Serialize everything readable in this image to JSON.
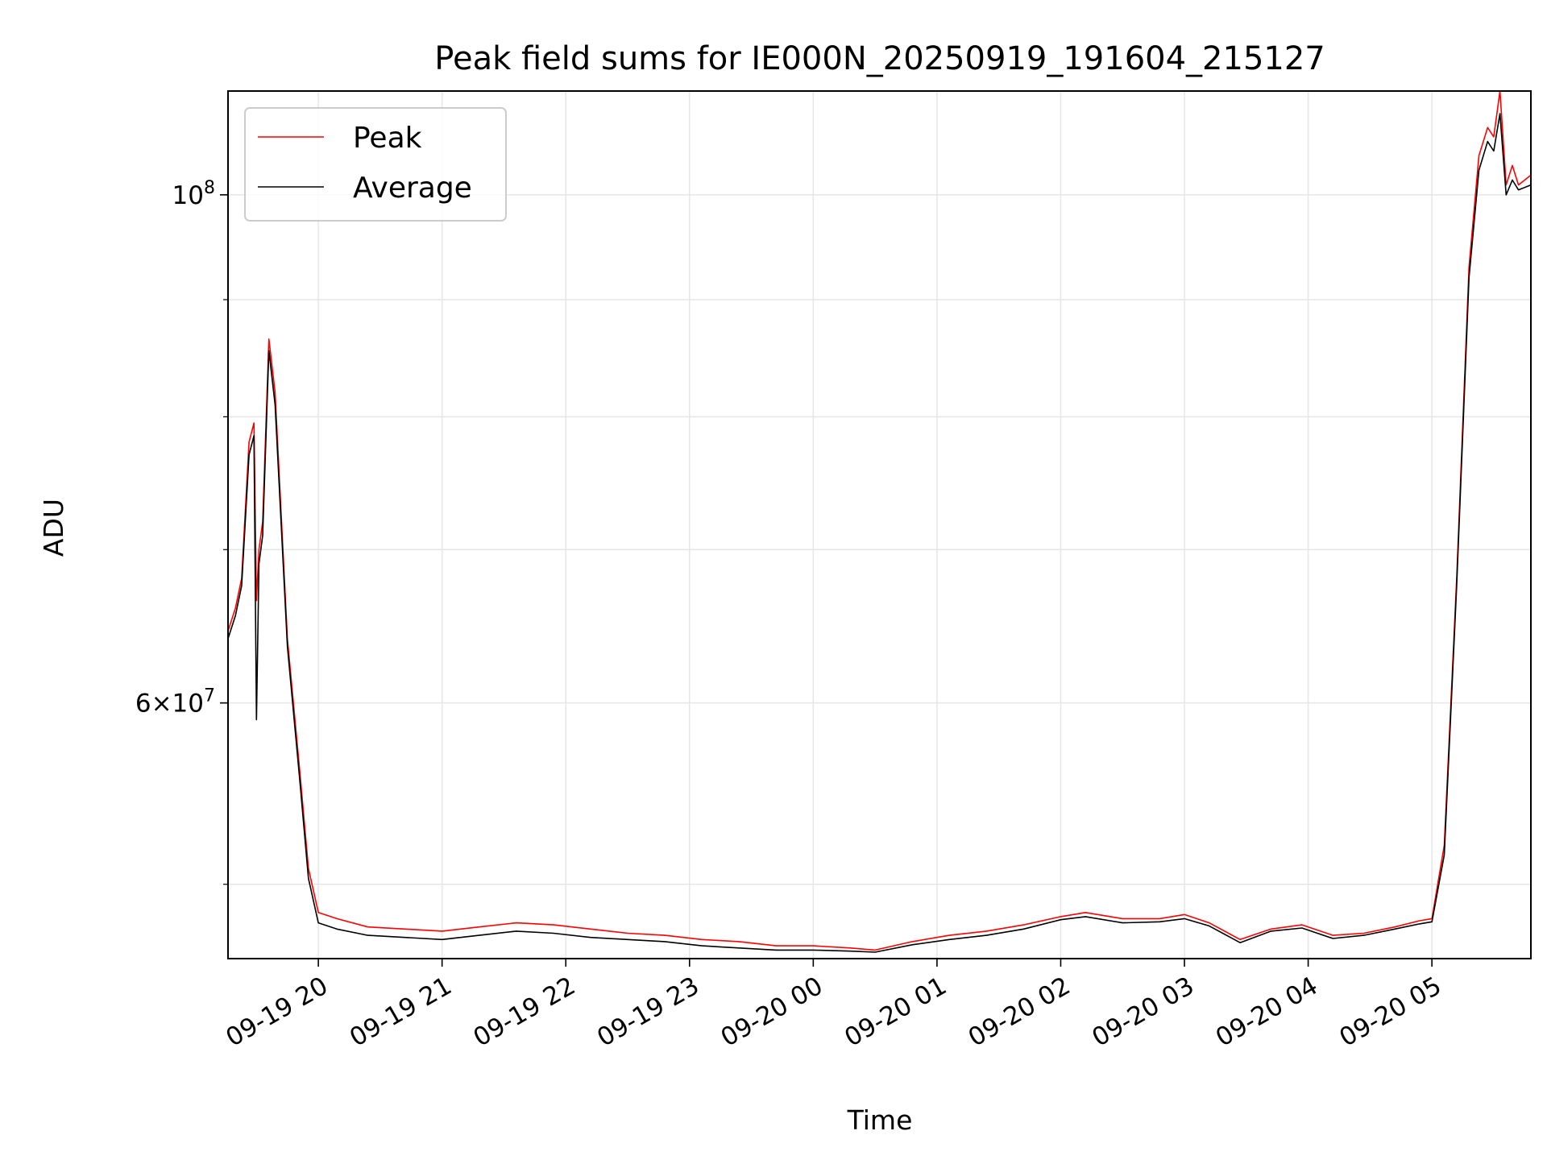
{
  "chart_data": {
    "type": "line",
    "title": "Peak field sums for IE000N_20250919_191604_215127",
    "xlabel": "Time",
    "ylabel": "ADU",
    "yscale": "log",
    "ylim": [
      46400000,
      111000000
    ],
    "xlim_hours": [
      19.27,
      29.8
    ],
    "grid": true,
    "legend_position": "top-left",
    "x_tick_hours": [
      20,
      21,
      22,
      23,
      24,
      25,
      26,
      27,
      28,
      29
    ],
    "x_tick_labels": [
      "09-19 20",
      "09-19 21",
      "09-19 22",
      "09-19 23",
      "09-20 00",
      "09-20 01",
      "09-20 02",
      "09-20 03",
      "09-20 04",
      "09-20 05"
    ],
    "y_major_ticks": [
      {
        "value": 100000000,
        "label_base": "10",
        "label_exp": "8"
      },
      {
        "value": 60000000,
        "label_base": "6×10",
        "label_exp": "7"
      }
    ],
    "y_minor_ticks": [
      50000000,
      70000000,
      80000000,
      90000000
    ],
    "series": [
      {
        "name": "Peak",
        "color": "#ff0000",
        "x": [
          19.27,
          19.33,
          19.38,
          19.44,
          19.48,
          19.5,
          19.52,
          19.55,
          19.6,
          19.65,
          19.75,
          19.85,
          19.92,
          20.0,
          20.15,
          20.4,
          20.7,
          21.0,
          21.3,
          21.6,
          21.9,
          22.2,
          22.5,
          22.8,
          23.1,
          23.4,
          23.7,
          24.0,
          24.3,
          24.5,
          24.8,
          25.1,
          25.4,
          25.7,
          26.0,
          26.2,
          26.5,
          26.8,
          27.0,
          27.2,
          27.45,
          27.7,
          27.95,
          28.2,
          28.45,
          28.7,
          28.9,
          29.0,
          29.1,
          29.2,
          29.3,
          29.38,
          29.45,
          29.5,
          29.55,
          29.6,
          29.65,
          29.7,
          29.8
        ],
        "values": [
          64500000,
          66000000,
          68000000,
          78000000,
          79500000,
          66500000,
          70000000,
          72000000,
          86500000,
          82000000,
          64000000,
          56000000,
          50800000,
          48600000,
          48300000,
          47900000,
          47800000,
          47700000,
          47900000,
          48100000,
          48000000,
          47800000,
          47600000,
          47500000,
          47300000,
          47200000,
          47000000,
          47000000,
          46900000,
          46800000,
          47200000,
          47500000,
          47700000,
          48000000,
          48400000,
          48600000,
          48300000,
          48300000,
          48500000,
          48100000,
          47300000,
          47800000,
          48000000,
          47500000,
          47600000,
          47900000,
          48200000,
          48300000,
          52000000,
          68000000,
          93000000,
          104000000,
          107000000,
          106000000,
          111000000,
          101000000,
          103000000,
          101000000,
          102000000
        ]
      },
      {
        "name": "Average",
        "color": "#000000",
        "x": [
          19.27,
          19.33,
          19.38,
          19.44,
          19.48,
          19.5,
          19.52,
          19.55,
          19.6,
          19.65,
          19.75,
          19.85,
          19.92,
          20.0,
          20.15,
          20.4,
          20.7,
          21.0,
          21.3,
          21.6,
          21.9,
          22.2,
          22.5,
          22.8,
          23.1,
          23.4,
          23.7,
          24.0,
          24.3,
          24.5,
          24.8,
          25.1,
          25.4,
          25.7,
          26.0,
          26.2,
          26.5,
          26.8,
          27.0,
          27.2,
          27.45,
          27.7,
          27.95,
          28.2,
          28.45,
          28.7,
          28.9,
          29.0,
          29.1,
          29.2,
          29.3,
          29.38,
          29.45,
          29.5,
          29.55,
          29.6,
          29.65,
          29.7,
          29.8
        ],
        "values": [
          64000000,
          65500000,
          67500000,
          77000000,
          78500000,
          59000000,
          69000000,
          71000000,
          85500000,
          81000000,
          63500000,
          55500000,
          50300000,
          48100000,
          47800000,
          47500000,
          47400000,
          47300000,
          47500000,
          47700000,
          47600000,
          47400000,
          47300000,
          47200000,
          47000000,
          46900000,
          46800000,
          46800000,
          46750000,
          46700000,
          47050000,
          47300000,
          47500000,
          47800000,
          48250000,
          48400000,
          48100000,
          48150000,
          48300000,
          47950000,
          47150000,
          47700000,
          47850000,
          47350000,
          47500000,
          47800000,
          48050000,
          48150000,
          51500000,
          67500000,
          92000000,
          102500000,
          105500000,
          104500000,
          108500000,
          100000000,
          101500000,
          100500000,
          101000000
        ]
      }
    ]
  }
}
